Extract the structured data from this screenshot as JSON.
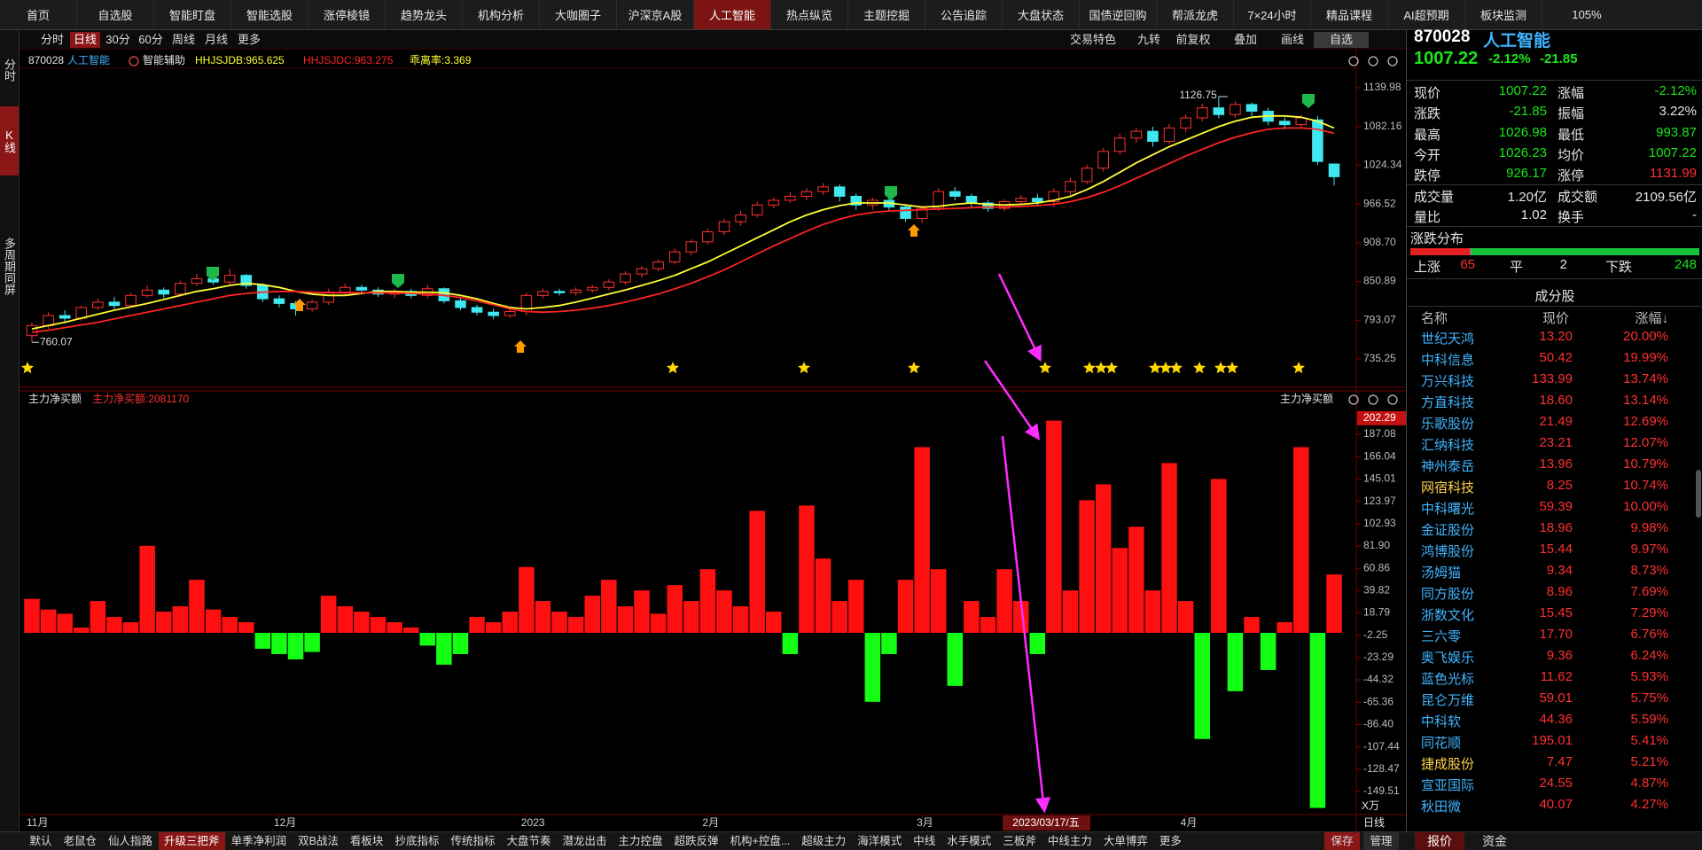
{
  "nav": {
    "tabs": [
      "首页",
      "自选股",
      "智能盯盘",
      "智能选股",
      "涨停棱镜",
      "趋势龙头",
      "机构分析",
      "大咖圈子",
      "沪深京A股",
      "人工智能",
      "热点纵览",
      "主题挖掘",
      "公告追踪",
      "大盘状态",
      "国债逆回购",
      "帮派龙虎",
      "7×24小时",
      "精品课程",
      "AI超预期",
      "板块监测"
    ],
    "active": 9,
    "zoom": "105%"
  },
  "side_tabs": {
    "items": [
      "分时",
      "K线",
      "多周期同屏"
    ],
    "active": 1
  },
  "toolbar": {
    "periods": [
      "分时",
      "日线",
      "30分",
      "60分",
      "周线",
      "月线",
      "更多"
    ],
    "active": 1,
    "tools": [
      "交易特色",
      "九转",
      "前复权",
      "叠加",
      "画线",
      "自选"
    ]
  },
  "chart_data": [
    {
      "type": "candlestick",
      "code": "870028",
      "name": "人工智能",
      "indicator_toggle": "智能辅助",
      "note": "乖离率:3.369",
      "categories": [
        "11月",
        null,
        null,
        null,
        null,
        null,
        null,
        null,
        null,
        null,
        null,
        null,
        null,
        null,
        null,
        "12月",
        null,
        null,
        null,
        null,
        null,
        null,
        null,
        null,
        null,
        null,
        null,
        null,
        null,
        null,
        "2023",
        null,
        null,
        null,
        null,
        null,
        null,
        null,
        null,
        null,
        null,
        "2月",
        null,
        null,
        null,
        null,
        null,
        null,
        null,
        null,
        null,
        null,
        null,
        null,
        "3月",
        null,
        null,
        null,
        null,
        null,
        null,
        null,
        null,
        null,
        null,
        null,
        null,
        null,
        null,
        null,
        "4月",
        null,
        null,
        null,
        null,
        null,
        null,
        null,
        null,
        null
      ],
      "cursor_date": "2023/03/17/五",
      "open": [
        770,
        785,
        800,
        796,
        812,
        820,
        815,
        830,
        838,
        832,
        848,
        855,
        850,
        860,
        845,
        825,
        818,
        810,
        820,
        835,
        842,
        838,
        832,
        836,
        830,
        840,
        822,
        812,
        805,
        800,
        806,
        830,
        836,
        834,
        838,
        842,
        850,
        862,
        870,
        880,
        895,
        910,
        925,
        940,
        950,
        965,
        972,
        978,
        985,
        992,
        978,
        965,
        972,
        962,
        945,
        960,
        985,
        978,
        968,
        960,
        970,
        975,
        970,
        985,
        1000,
        1020,
        1045,
        1065,
        1075,
        1060,
        1080,
        1095,
        1110,
        1100,
        1115,
        1105,
        1090,
        1085,
        1092,
        1026.23
      ],
      "close": [
        785,
        800,
        796,
        812,
        820,
        815,
        830,
        838,
        832,
        848,
        855,
        850,
        860,
        845,
        825,
        818,
        810,
        820,
        835,
        842,
        838,
        832,
        836,
        830,
        840,
        822,
        812,
        805,
        800,
        806,
        830,
        836,
        834,
        838,
        842,
        850,
        862,
        870,
        880,
        895,
        910,
        925,
        940,
        950,
        965,
        972,
        978,
        985,
        992,
        978,
        965,
        972,
        962,
        945,
        960,
        985,
        978,
        968,
        960,
        970,
        975,
        970,
        985,
        1000,
        1020,
        1045,
        1065,
        1075,
        1060,
        1080,
        1095,
        1110,
        1100,
        1115,
        1105,
        1090,
        1085,
        1095,
        1030,
        1007.22
      ],
      "high": [
        790,
        805,
        808,
        815,
        826,
        828,
        834,
        845,
        842,
        852,
        862,
        866,
        870,
        862,
        848,
        830,
        822,
        824,
        840,
        848,
        846,
        842,
        840,
        840,
        846,
        842,
        826,
        816,
        810,
        810,
        834,
        840,
        840,
        842,
        846,
        854,
        866,
        874,
        884,
        900,
        914,
        930,
        944,
        956,
        970,
        976,
        984,
        990,
        998,
        996,
        982,
        976,
        976,
        966,
        964,
        990,
        992,
        982,
        972,
        974,
        980,
        982,
        990,
        1006,
        1025,
        1050,
        1072,
        1080,
        1082,
        1086,
        1100,
        1116,
        1126.75,
        1120,
        1118,
        1110,
        1096,
        1100,
        1098,
        1026.98
      ],
      "low": [
        760.07,
        780,
        790,
        792,
        808,
        810,
        812,
        826,
        826,
        828,
        844,
        846,
        846,
        840,
        820,
        812,
        800,
        806,
        816,
        830,
        832,
        828,
        826,
        826,
        826,
        818,
        808,
        800,
        795,
        796,
        800,
        826,
        830,
        830,
        834,
        838,
        846,
        856,
        866,
        876,
        890,
        906,
        920,
        934,
        946,
        960,
        968,
        972,
        980,
        970,
        958,
        958,
        955,
        940,
        938,
        956,
        972,
        960,
        955,
        956,
        965,
        964,
        962,
        980,
        996,
        1015,
        1040,
        1058,
        1052,
        1056,
        1074,
        1090,
        1094,
        1095,
        1098,
        1084,
        1078,
        1080,
        1025,
        993.87
      ],
      "series": [
        {
          "name": "HHJSJDB:965.625",
          "color": "#ffff33",
          "values": [
            780,
            785,
            790,
            796,
            802,
            808,
            813,
            818,
            824,
            830,
            836,
            840,
            845,
            848,
            846,
            842,
            836,
            832,
            830,
            830,
            833,
            836,
            836,
            835,
            835,
            834,
            830,
            825,
            818,
            812,
            810,
            812,
            815,
            820,
            826,
            832,
            838,
            845,
            852,
            860,
            870,
            880,
            892,
            904,
            916,
            928,
            940,
            950,
            958,
            964,
            968,
            968,
            968,
            965,
            962,
            963,
            966,
            968,
            966,
            965,
            966,
            968,
            972,
            978,
            988,
            1000,
            1014,
            1028,
            1040,
            1052,
            1062,
            1072,
            1082,
            1090,
            1096,
            1098,
            1098,
            1096,
            1090,
            1080
          ]
        },
        {
          "name": "HHJSJDC:963.275",
          "color": "#ff2424",
          "values": [
            775,
            778,
            782,
            786,
            790,
            795,
            800,
            805,
            810,
            815,
            820,
            825,
            830,
            833,
            835,
            836,
            836,
            835,
            834,
            834,
            834,
            834,
            834,
            833,
            832,
            830,
            827,
            822,
            816,
            810,
            806,
            805,
            806,
            808,
            811,
            815,
            820,
            826,
            832,
            840,
            848,
            858,
            868,
            880,
            892,
            904,
            915,
            926,
            936,
            944,
            950,
            954,
            956,
            957,
            958,
            959,
            960,
            961,
            962,
            962,
            963,
            964,
            966,
            970,
            976,
            984,
            994,
            1005,
            1016,
            1027,
            1038,
            1048,
            1058,
            1066,
            1073,
            1078,
            1080,
            1080,
            1078,
            1072
          ]
        }
      ],
      "up_color": "#ff3030",
      "down_color": "#3fe8f0",
      "ylim": [
        695.5,
        1167.8
      ],
      "yticks": [
        1139.98,
        1082.16,
        1024.34,
        966.52,
        {
          "value": 908.7,
          "label": "908.70"
        },
        850.89,
        793.07,
        735.25
      ]
    },
    {
      "type": "bar",
      "title": "主力净买额",
      "subtitle": "主力净买额:2081170",
      "right_title": "主力净买额",
      "unit": "X万",
      "period": "日线",
      "values": [
        32,
        22,
        18,
        5,
        30,
        15,
        10,
        82,
        20,
        25,
        50,
        22,
        15,
        10,
        -15,
        -20,
        -25,
        -18,
        35,
        25,
        20,
        15,
        10,
        5,
        -12,
        -30,
        -20,
        15,
        10,
        20,
        62,
        30,
        20,
        15,
        35,
        50,
        25,
        40,
        18,
        45,
        30,
        60,
        40,
        25,
        115,
        20,
        -20,
        120,
        70,
        30,
        50,
        -65,
        -20,
        50,
        175,
        60,
        -50,
        30,
        15,
        60,
        30,
        -20,
        200,
        40,
        125,
        140,
        80,
        100,
        40,
        160,
        30,
        -100,
        145,
        -55,
        15,
        -35,
        10,
        175,
        -165,
        55
      ],
      "pos_color": "#ff1010",
      "neg_color": "#14ff14",
      "ylim": [
        -170.4,
        213
      ],
      "yticks": [
        202.29,
        187.08,
        166.04,
        145.01,
        123.97,
        102.93,
        {
          "value": 81.9,
          "label": "81.90"
        },
        60.86,
        39.82,
        18.79,
        -2.25,
        -23.29,
        -44.32,
        -65.36,
        {
          "value": -86.4,
          "label": "-86.40"
        },
        -107.44,
        -128.47,
        -149.51
      ]
    }
  ],
  "quote": {
    "code": "870028",
    "name": "人工智能",
    "price": "1007.22",
    "pct": "-2.12%",
    "change": "-21.85",
    "fields": [
      {
        "label": "现价",
        "value": "1007.22",
        "color": "#19e619"
      },
      {
        "label": "涨幅",
        "value": "-2.12%",
        "color": "#19e619"
      },
      {
        "label": "涨跌",
        "value": "-21.85",
        "color": "#19e619"
      },
      {
        "label": "振幅",
        "value": "3.22%",
        "color": "#e6e6e6"
      },
      {
        "label": "最高",
        "value": "1026.98",
        "color": "#19e619"
      },
      {
        "label": "最低",
        "value": "993.87",
        "color": "#19e619"
      },
      {
        "label": "今开",
        "value": "1026.23",
        "color": "#19e619"
      },
      {
        "label": "均价",
        "value": "1007.22",
        "color": "#19e619"
      },
      {
        "label": "跌停",
        "value": "926.17",
        "color": "#19e619"
      },
      {
        "label": "涨停",
        "value": "1131.99",
        "color": "#ff3030"
      },
      {
        "label": "成交量",
        "value": "1.20亿",
        "color": "#e6e6e6"
      },
      {
        "label": "成交额",
        "value": "2109.56亿",
        "color": "#e6e6e6"
      },
      {
        "label": "量比",
        "value": "1.02",
        "color": "#e6e6e6"
      },
      {
        "label": "换手",
        "value": "-",
        "color": "#e6e6e6"
      }
    ]
  },
  "distribution": {
    "title": "涨跌分布",
    "up_label": "上涨",
    "up": 65,
    "flat_label": "平",
    "flat": 2,
    "down_label": "下跌",
    "down": 248
  },
  "constituents": {
    "title": "成分股",
    "columns": [
      "名称",
      "现价",
      "涨幅↓"
    ],
    "rows": [
      {
        "name": "世纪天鸿",
        "price": "13.20",
        "pct": "20.00%"
      },
      {
        "name": "中科信息",
        "price": "50.42",
        "pct": "19.99%"
      },
      {
        "name": "万兴科技",
        "price": "133.99",
        "pct": "13.74%"
      },
      {
        "name": "方直科技",
        "price": "18.60",
        "pct": "13.14%"
      },
      {
        "name": "乐歌股份",
        "price": "21.49",
        "pct": "12.69%"
      },
      {
        "name": "汇纳科技",
        "price": "23.21",
        "pct": "12.07%"
      },
      {
        "name": "神州泰岳",
        "price": "13.96",
        "pct": "10.79%"
      },
      {
        "name": "网宿科技",
        "price": "8.25",
        "pct": "10.74%",
        "color": "#ffd24a"
      },
      {
        "name": "中科曙光",
        "price": "59.39",
        "pct": "10.00%"
      },
      {
        "name": "金证股份",
        "price": "18.96",
        "pct": "9.98%"
      },
      {
        "name": "鸿博股份",
        "price": "15.44",
        "pct": "9.97%"
      },
      {
        "name": "汤姆猫",
        "price": "9.34",
        "pct": "8.73%"
      },
      {
        "name": "同方股份",
        "price": "8.96",
        "pct": "7.69%"
      },
      {
        "name": "浙数文化",
        "price": "15.45",
        "pct": "7.29%"
      },
      {
        "name": "三六零",
        "price": "17.70",
        "pct": "6.76%"
      },
      {
        "name": "奥飞娱乐",
        "price": "9.36",
        "pct": "6.24%"
      },
      {
        "name": "蓝色光标",
        "price": "11.62",
        "pct": "5.93%"
      },
      {
        "name": "昆仑万维",
        "price": "59.01",
        "pct": "5.75%"
      },
      {
        "name": "中科软",
        "price": "44.36",
        "pct": "5.59%"
      },
      {
        "name": "同花顺",
        "price": "195.01",
        "pct": "5.41%"
      },
      {
        "name": "捷成股份",
        "price": "7.47",
        "pct": "5.21%",
        "color": "#ffd24a"
      },
      {
        "name": "宣亚国际",
        "price": "24.55",
        "pct": "4.87%"
      },
      {
        "name": "秋田微",
        "price": "40.07",
        "pct": "4.27%"
      }
    ]
  },
  "indicator_tabs": {
    "items": [
      "默认",
      "老鼠仓",
      "仙人指路",
      "升级三把斧",
      "单季净利润",
      "双B战法",
      "看板块",
      "抄底指标",
      "传统指标",
      "大盘节奏",
      "潜龙出击",
      "主力控盘",
      "超跌反弹",
      "机构+控盘...",
      "超级主力",
      "海洋模式",
      "中线",
      "水手模式",
      "三板斧",
      "中线主力",
      "大单博弈",
      "更多"
    ],
    "active": 3
  },
  "actions": [
    "保存",
    "管理"
  ],
  "panel_tabs": {
    "items": [
      "报价",
      "资金"
    ],
    "active": 0
  }
}
